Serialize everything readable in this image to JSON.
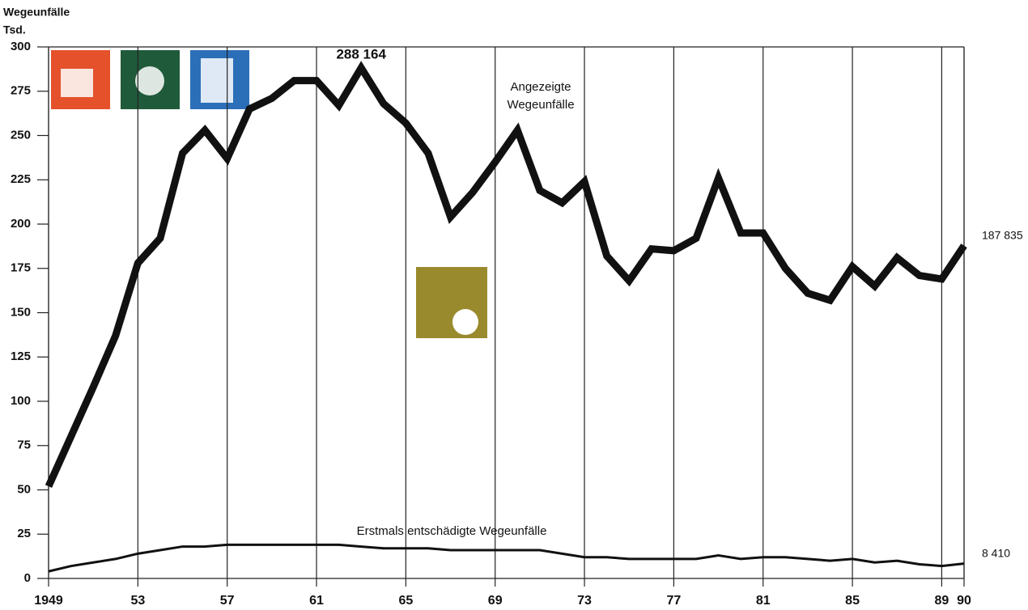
{
  "chart_data": {
    "type": "line",
    "ylabel": [
      "Wegeunfälle",
      "Tsd."
    ],
    "x": [
      1949,
      1950,
      1951,
      1952,
      1953,
      1954,
      1955,
      1956,
      1957,
      1958,
      1959,
      1960,
      1961,
      1962,
      1963,
      1964,
      1965,
      1966,
      1967,
      1968,
      1969,
      1970,
      1971,
      1972,
      1973,
      1974,
      1975,
      1976,
      1977,
      1978,
      1979,
      1980,
      1981,
      1982,
      1983,
      1984,
      1985,
      1986,
      1987,
      1988,
      1989,
      1990
    ],
    "series": [
      {
        "name": "Angezeigte Wegeunfälle",
        "color": "#111111",
        "width": 9,
        "values": [
          52,
          80,
          108,
          137,
          178,
          192,
          240,
          253,
          237,
          265,
          271,
          281,
          281,
          267,
          288.164,
          268,
          257,
          240,
          204,
          218,
          235,
          253,
          219,
          212,
          224,
          182,
          168,
          186,
          185,
          192,
          226,
          195,
          195,
          175,
          161,
          157,
          176,
          165,
          181,
          171,
          169,
          187.835
        ],
        "value_labels": {
          "14": "288 164",
          "41": "187 835"
        }
      },
      {
        "name": "Erstmals entschädigte Wegeunfälle",
        "color": "#111111",
        "width": 3,
        "values": [
          4,
          7,
          9,
          11,
          14,
          16,
          18,
          18,
          19,
          19,
          19,
          19,
          19,
          19,
          18,
          17,
          17,
          17,
          16,
          16,
          16,
          16,
          16,
          14,
          12,
          12,
          11,
          11,
          11,
          11,
          13,
          11,
          12,
          12,
          11,
          10,
          11,
          9,
          10,
          8,
          7,
          8.41
        ],
        "value_labels": {
          "41": "8 410"
        }
      }
    ],
    "xlim": [
      1949,
      1990
    ],
    "xticks": [
      1949,
      {
        "value": 1953,
        "label": "53"
      },
      {
        "value": 1957,
        "label": "57"
      },
      {
        "value": 1961,
        "label": "61"
      },
      {
        "value": 1965,
        "label": "65"
      },
      {
        "value": 1969,
        "label": "69"
      },
      {
        "value": 1973,
        "label": "73"
      },
      {
        "value": 1977,
        "label": "77"
      },
      {
        "value": 1981,
        "label": "81"
      },
      {
        "value": 1985,
        "label": "85"
      },
      {
        "value": 1989,
        "label": "89"
      },
      {
        "value": 1990,
        "label": "90"
      }
    ],
    "ylim": [
      0,
      300
    ],
    "yticks": [
      0,
      25,
      50,
      75,
      100,
      125,
      150,
      175,
      200,
      225,
      250,
      275,
      300
    ],
    "grid": true
  }
}
